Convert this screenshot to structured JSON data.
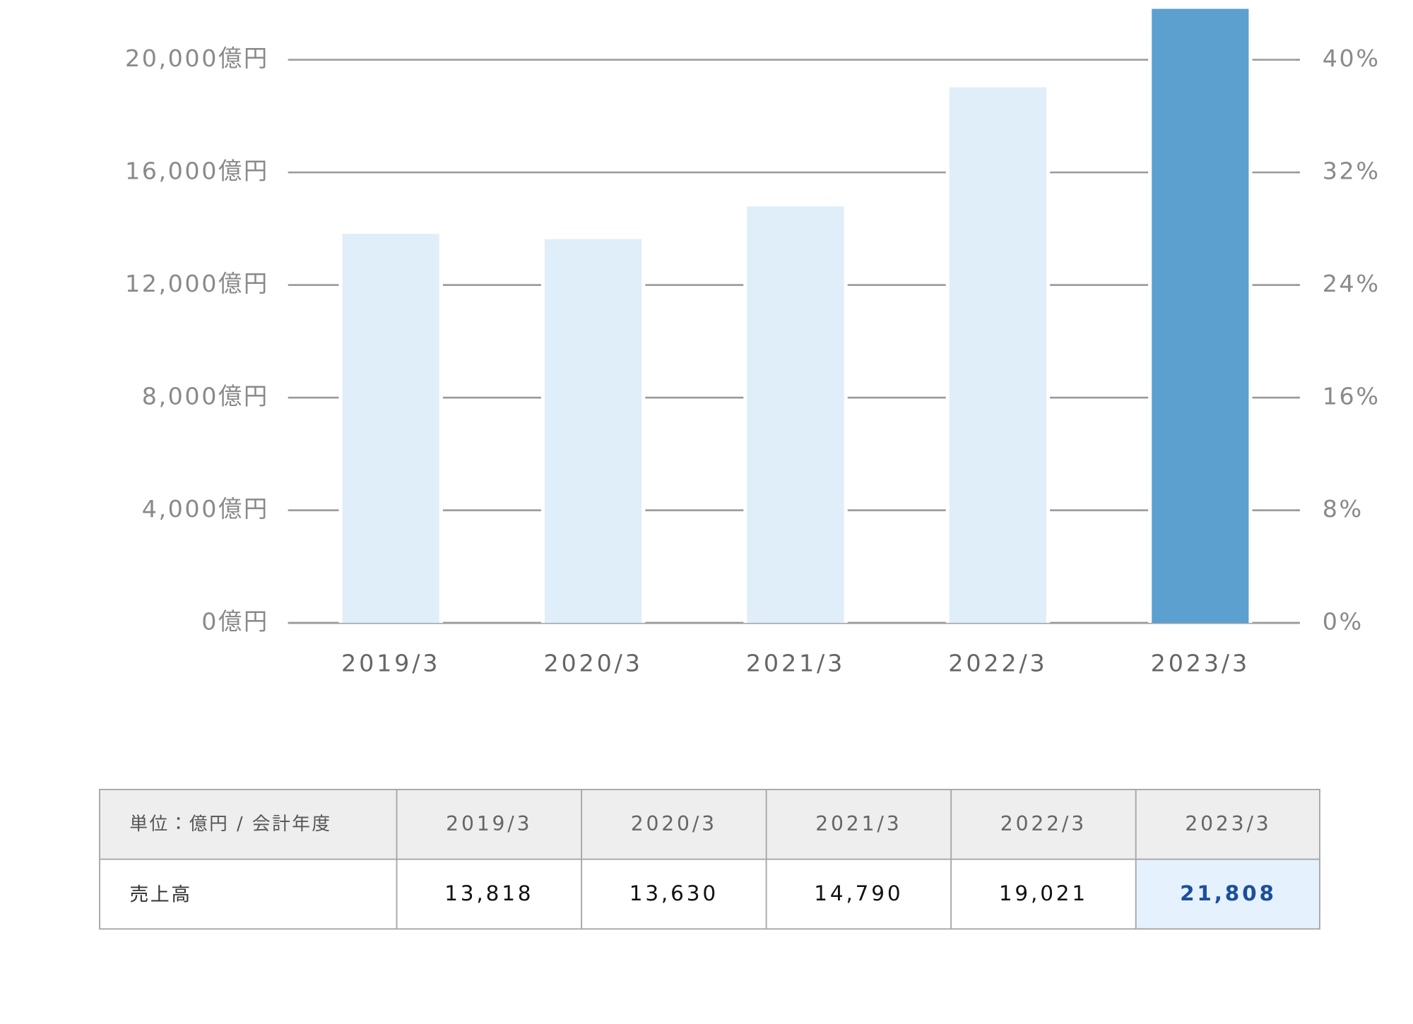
{
  "chart_data": {
    "type": "bar",
    "categories": [
      "2019/3",
      "2020/3",
      "2021/3",
      "2022/3",
      "2023/3"
    ],
    "values": [
      13818,
      13630,
      14790,
      19021,
      21808
    ],
    "value_labels": [
      "13,818",
      "13,630",
      "14,790",
      "19,021",
      "21,808"
    ],
    "colors": [
      "#dfeef9",
      "#dfeef9",
      "#dfeef9",
      "#dfeef9",
      "#5ba0cf"
    ],
    "ylim": [
      0,
      20000
    ],
    "yticks": [
      {
        "value": 0,
        "label": "0億円"
      },
      {
        "value": 4000,
        "label": "4,000億円"
      },
      {
        "value": 8000,
        "label": "8,000億円"
      },
      {
        "value": 12000,
        "label": "12,000億円"
      },
      {
        "value": 16000,
        "label": "16,000億円"
      },
      {
        "value": 20000,
        "label": "20,000億円"
      }
    ],
    "y2lim": [
      0,
      40
    ],
    "y2ticks": [
      {
        "value": 0,
        "label": "0%"
      },
      {
        "value": 8,
        "label": "8%"
      },
      {
        "value": 16,
        "label": "16%"
      },
      {
        "value": 24,
        "label": "24%"
      },
      {
        "value": 32,
        "label": "32%"
      },
      {
        "value": 40,
        "label": "40%"
      }
    ],
    "grid": true,
    "highlight_index": 4
  },
  "table": {
    "header": "単位：億円 / 会計年度",
    "row_label": "売上高"
  }
}
